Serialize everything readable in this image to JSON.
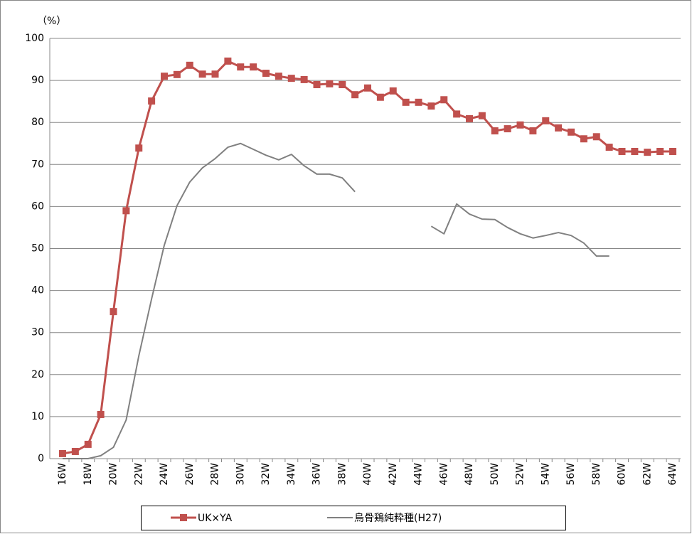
{
  "chart_data": {
    "type": "line",
    "y_label": "（%）",
    "categories": [
      "16W",
      null,
      "18W",
      null,
      "20W",
      null,
      "22W",
      null,
      "24W",
      null,
      "26W",
      null,
      "28W",
      null,
      "30W",
      null,
      "32W",
      null,
      "34W",
      null,
      "36W",
      null,
      "38W",
      null,
      "40W",
      null,
      "42W",
      null,
      "44W",
      null,
      "46W",
      null,
      "48W",
      null,
      "50W",
      null,
      "52W",
      null,
      "54W",
      null,
      "56W",
      null,
      "58W",
      null,
      "60W",
      null,
      "62W",
      null,
      "64W"
    ],
    "series": [
      {
        "name": "UK×YA",
        "color": "#c0504d",
        "marker": "square",
        "values": [
          1.2,
          1.7,
          3.4,
          10.5,
          35,
          59,
          73.9,
          85.1,
          91,
          91.4,
          93.6,
          91.5,
          91.5,
          94.6,
          93.2,
          93.2,
          91.7,
          91,
          90.5,
          90.2,
          89,
          89.2,
          89,
          86.6,
          88.2,
          86,
          87.5,
          84.8,
          84.8,
          83.9,
          85.4,
          82,
          80.9,
          81.6,
          78,
          78.5,
          79.4,
          78,
          80.4,
          78.7,
          77.7,
          76.1,
          76.6,
          74.1,
          73.1,
          73.1,
          72.9,
          73.1,
          73.1
        ]
      },
      {
        "name": "烏骨鶏純粋種(H27)",
        "color": "#808080",
        "marker": null,
        "values": [
          0,
          0,
          0,
          0.7,
          2.7,
          9.2,
          24.5,
          38,
          50.8,
          60.2,
          65.8,
          69.2,
          71.4,
          74.1,
          75,
          73.6,
          72.2,
          71.1,
          72.4,
          69.7,
          67.7,
          67.7,
          66.8,
          63.5,
          null,
          null,
          null,
          null,
          null,
          55.3,
          53.5,
          60.6,
          58.2,
          57,
          56.9,
          55,
          53.5,
          52.5,
          53.1,
          53.8,
          53.1,
          51.3,
          48.2,
          48.2,
          null,
          null,
          null,
          null,
          null
        ]
      }
    ],
    "ylim": [
      0,
      100
    ],
    "yticks": [
      0,
      10,
      20,
      30,
      40,
      50,
      60,
      70,
      80,
      90,
      100
    ],
    "grid": true,
    "legend": "bottom"
  }
}
